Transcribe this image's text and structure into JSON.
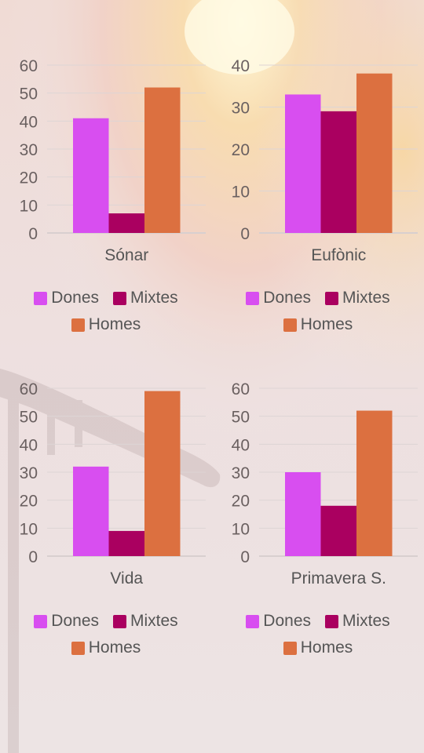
{
  "colors": {
    "Dones": "#d84ef0",
    "Mixtes": "#aa0060",
    "Homes": "#dc7040"
  },
  "chart_data": [
    {
      "type": "bar",
      "categories": [
        "Sónar"
      ],
      "series": [
        {
          "name": "Dones",
          "values": [
            41
          ]
        },
        {
          "name": "Mixtes",
          "values": [
            7
          ]
        },
        {
          "name": "Homes",
          "values": [
            52
          ]
        }
      ],
      "ylim": [
        0,
        60
      ],
      "yticks": [
        0,
        10,
        20,
        30,
        40,
        50,
        60
      ],
      "legend": "bottom"
    },
    {
      "type": "bar",
      "categories": [
        "Eufònic"
      ],
      "series": [
        {
          "name": "Dones",
          "values": [
            33
          ]
        },
        {
          "name": "Mixtes",
          "values": [
            29
          ]
        },
        {
          "name": "Homes",
          "values": [
            38
          ]
        }
      ],
      "ylim": [
        0,
        40
      ],
      "yticks": [
        0,
        10,
        20,
        30,
        40
      ],
      "legend": "bottom"
    },
    {
      "type": "bar",
      "categories": [
        "Vida"
      ],
      "series": [
        {
          "name": "Dones",
          "values": [
            32
          ]
        },
        {
          "name": "Mixtes",
          "values": [
            9
          ]
        },
        {
          "name": "Homes",
          "values": [
            59
          ]
        }
      ],
      "ylim": [
        0,
        60
      ],
      "yticks": [
        0,
        10,
        20,
        30,
        40,
        50,
        60
      ],
      "legend": "bottom"
    },
    {
      "type": "bar",
      "categories": [
        "Primavera S."
      ],
      "series": [
        {
          "name": "Dones",
          "values": [
            30
          ]
        },
        {
          "name": "Mixtes",
          "values": [
            18
          ]
        },
        {
          "name": "Homes",
          "values": [
            52
          ]
        }
      ],
      "ylim": [
        0,
        60
      ],
      "yticks": [
        0,
        10,
        20,
        30,
        40,
        50,
        60
      ],
      "legend": "bottom"
    }
  ]
}
